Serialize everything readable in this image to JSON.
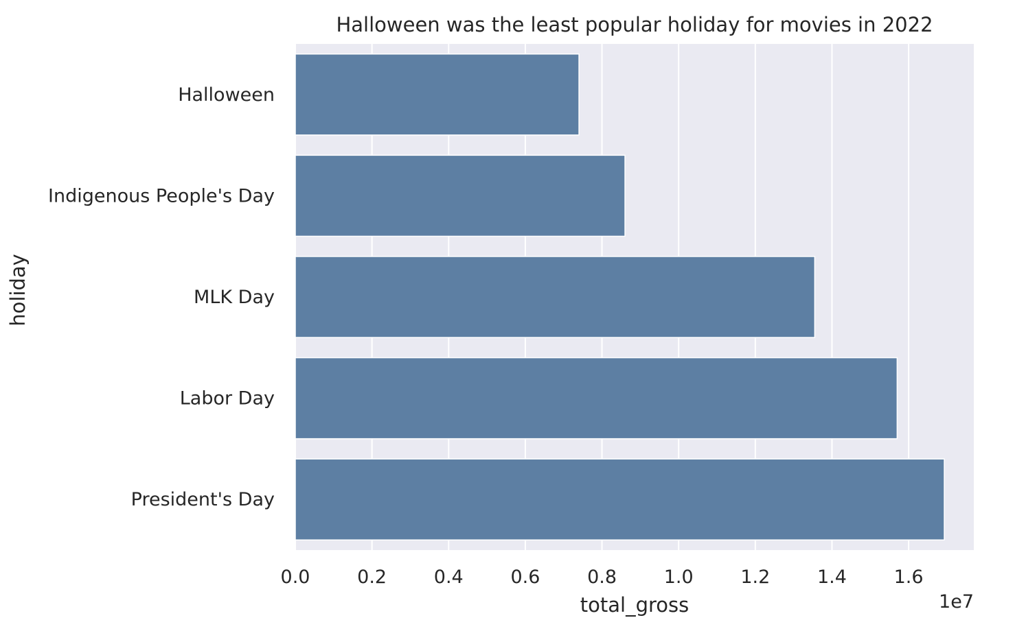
{
  "chart_data": {
    "type": "bar",
    "orientation": "horizontal",
    "title": "Halloween was the least popular holiday for movies in 2022",
    "xlabel": "total_gross",
    "ylabel": "holiday",
    "x_offset_label": "1e7",
    "xlim": [
      0,
      1.77
    ],
    "x_ticks": [
      0.0,
      0.2,
      0.4,
      0.6,
      0.8,
      1.0,
      1.2,
      1.4,
      1.6
    ],
    "x_tick_labels": [
      "0.0",
      "0.2",
      "0.4",
      "0.6",
      "0.8",
      "1.0",
      "1.2",
      "1.4",
      "1.6"
    ],
    "grid": true,
    "categories": [
      "Halloween",
      "Indigenous People's Day",
      "MLK Day",
      "Labor Day",
      "President's Day"
    ],
    "values": [
      0.74,
      0.86,
      1.355,
      1.57,
      1.693
    ],
    "value_multiplier": 10000000,
    "colors": {
      "bar": "#5d7fa3",
      "plot_background": "#eaeaf2",
      "grid": "#ffffff",
      "text": "#262626"
    }
  }
}
